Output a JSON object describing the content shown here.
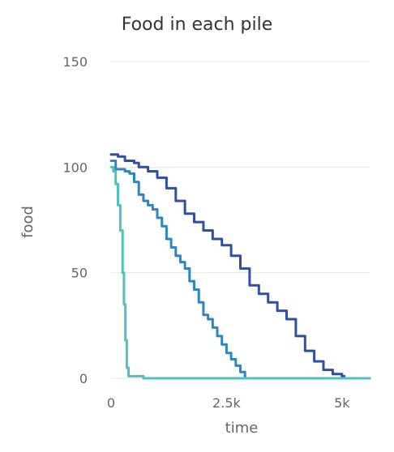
{
  "chart_data": {
    "type": "line",
    "title": "Food in each pile",
    "xlabel": "time",
    "ylabel": "food",
    "xlim": [
      0,
      5600
    ],
    "ylim": [
      0,
      150
    ],
    "xticks": [
      {
        "value": 0,
        "label": "0"
      },
      {
        "value": 2500,
        "label": "2.5k"
      },
      {
        "value": 5000,
        "label": "5k"
      }
    ],
    "yticks": [
      {
        "value": 0,
        "label": "0"
      },
      {
        "value": 50,
        "label": "50"
      },
      {
        "value": 100,
        "label": "100"
      },
      {
        "value": 150,
        "label": "150"
      }
    ],
    "grid": true,
    "legend": "none",
    "series": [
      {
        "color": "#2f4fa3",
        "points": [
          [
            0,
            106
          ],
          [
            150,
            105
          ],
          [
            300,
            103
          ],
          [
            500,
            102
          ],
          [
            600,
            100
          ],
          [
            800,
            98
          ],
          [
            1000,
            95
          ],
          [
            1200,
            90
          ],
          [
            1400,
            84
          ],
          [
            1600,
            78
          ],
          [
            1800,
            74
          ],
          [
            2000,
            70
          ],
          [
            2200,
            66
          ],
          [
            2400,
            63
          ],
          [
            2600,
            58
          ],
          [
            2800,
            52
          ],
          [
            3000,
            44
          ],
          [
            3200,
            40
          ],
          [
            3400,
            36
          ],
          [
            3600,
            32
          ],
          [
            3800,
            28
          ],
          [
            4000,
            20
          ],
          [
            4200,
            13
          ],
          [
            4400,
            8
          ],
          [
            4600,
            4
          ],
          [
            4800,
            2
          ],
          [
            5000,
            1
          ],
          [
            5050,
            0
          ],
          [
            5600,
            0
          ]
        ]
      },
      {
        "color": "#2d86c2",
        "points": [
          [
            0,
            103
          ],
          [
            100,
            99
          ],
          [
            300,
            98
          ],
          [
            400,
            97
          ],
          [
            500,
            93
          ],
          [
            600,
            87
          ],
          [
            700,
            84
          ],
          [
            800,
            82
          ],
          [
            900,
            80
          ],
          [
            1000,
            76
          ],
          [
            1100,
            72
          ],
          [
            1200,
            66
          ],
          [
            1300,
            62
          ],
          [
            1400,
            58
          ],
          [
            1500,
            55
          ],
          [
            1600,
            52
          ],
          [
            1700,
            46
          ],
          [
            1800,
            42
          ],
          [
            1900,
            36
          ],
          [
            2000,
            30
          ],
          [
            2100,
            28
          ],
          [
            2200,
            24
          ],
          [
            2300,
            20
          ],
          [
            2400,
            16
          ],
          [
            2500,
            12
          ],
          [
            2600,
            9
          ],
          [
            2700,
            6
          ],
          [
            2800,
            3
          ],
          [
            2900,
            0
          ],
          [
            5600,
            0
          ]
        ]
      },
      {
        "color": "#4fc0c0",
        "points": [
          [
            0,
            100
          ],
          [
            50,
            98
          ],
          [
            100,
            92
          ],
          [
            150,
            82
          ],
          [
            200,
            70
          ],
          [
            250,
            50
          ],
          [
            280,
            35
          ],
          [
            310,
            18
          ],
          [
            340,
            5
          ],
          [
            380,
            1
          ],
          [
            650,
            1
          ],
          [
            700,
            0
          ],
          [
            5600,
            0
          ]
        ]
      }
    ]
  }
}
